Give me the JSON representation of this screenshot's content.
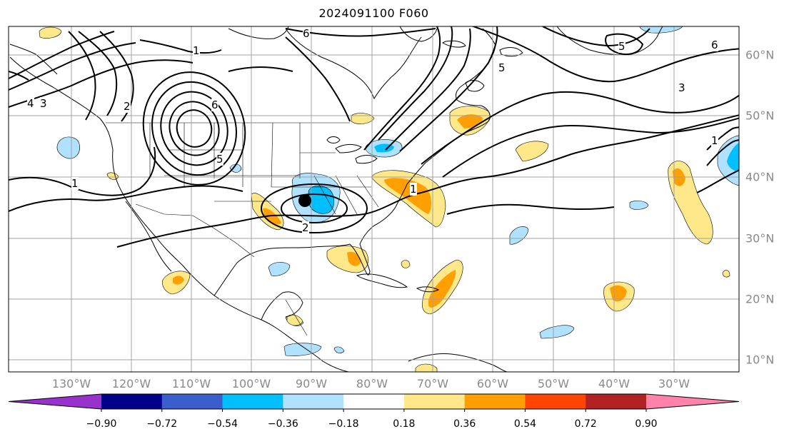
{
  "title": "2024091100 F060",
  "lon_labels": [
    "130°W",
    "120°W",
    "110°W",
    "100°W",
    "90°W",
    "80°W",
    "70°W",
    "60°W",
    "50°W",
    "40°W",
    "30°W"
  ],
  "lat_labels": [
    "60°N",
    "50°N",
    "40°N",
    "30°N",
    "20°N",
    "10°N"
  ],
  "contour_labels": [
    {
      "text": "4",
      "name": "contour-label-4-west"
    },
    {
      "text": "3",
      "name": "contour-label-3-west"
    },
    {
      "text": "2",
      "name": "contour-label-2-pacific"
    },
    {
      "text": "1",
      "name": "contour-label-1-canada"
    },
    {
      "text": "6",
      "name": "contour-label-6-rockies"
    },
    {
      "text": "5",
      "name": "contour-label-5-rockies"
    },
    {
      "text": "1",
      "name": "contour-label-1-mexico"
    },
    {
      "text": "2",
      "name": "contour-label-2-lowcenter"
    },
    {
      "text": "1",
      "name": "contour-label-1-eastcoast"
    },
    {
      "text": "6",
      "name": "contour-label-6-hudson"
    },
    {
      "text": "5",
      "name": "contour-label-5-labrador"
    },
    {
      "text": "5",
      "name": "contour-label-5-greenland"
    },
    {
      "text": "3",
      "name": "contour-label-3-atlantic"
    },
    {
      "text": "6",
      "name": "contour-label-6-northatlantic"
    },
    {
      "text": "1",
      "name": "contour-label-1-eastatlantic"
    }
  ],
  "colorbar": {
    "labels": [
      "−0.90",
      "−0.72",
      "−0.54",
      "−0.36",
      "−0.18",
      "0.18",
      "0.36",
      "0.54",
      "0.72",
      "0.90"
    ],
    "colors": [
      "#9932cc",
      "#00008b",
      "#3a5fcd",
      "#00bfff",
      "#b0e2ff",
      "#ffffff",
      "#ffe88a",
      "#ffa000",
      "#ff4500",
      "#b22222",
      "#ff82ab"
    ]
  },
  "legend_colors": {
    "light_blue": "#b0e2ff",
    "blue": "#00bfff",
    "light_yellow": "#ffe88a",
    "orange": "#ffa000"
  }
}
